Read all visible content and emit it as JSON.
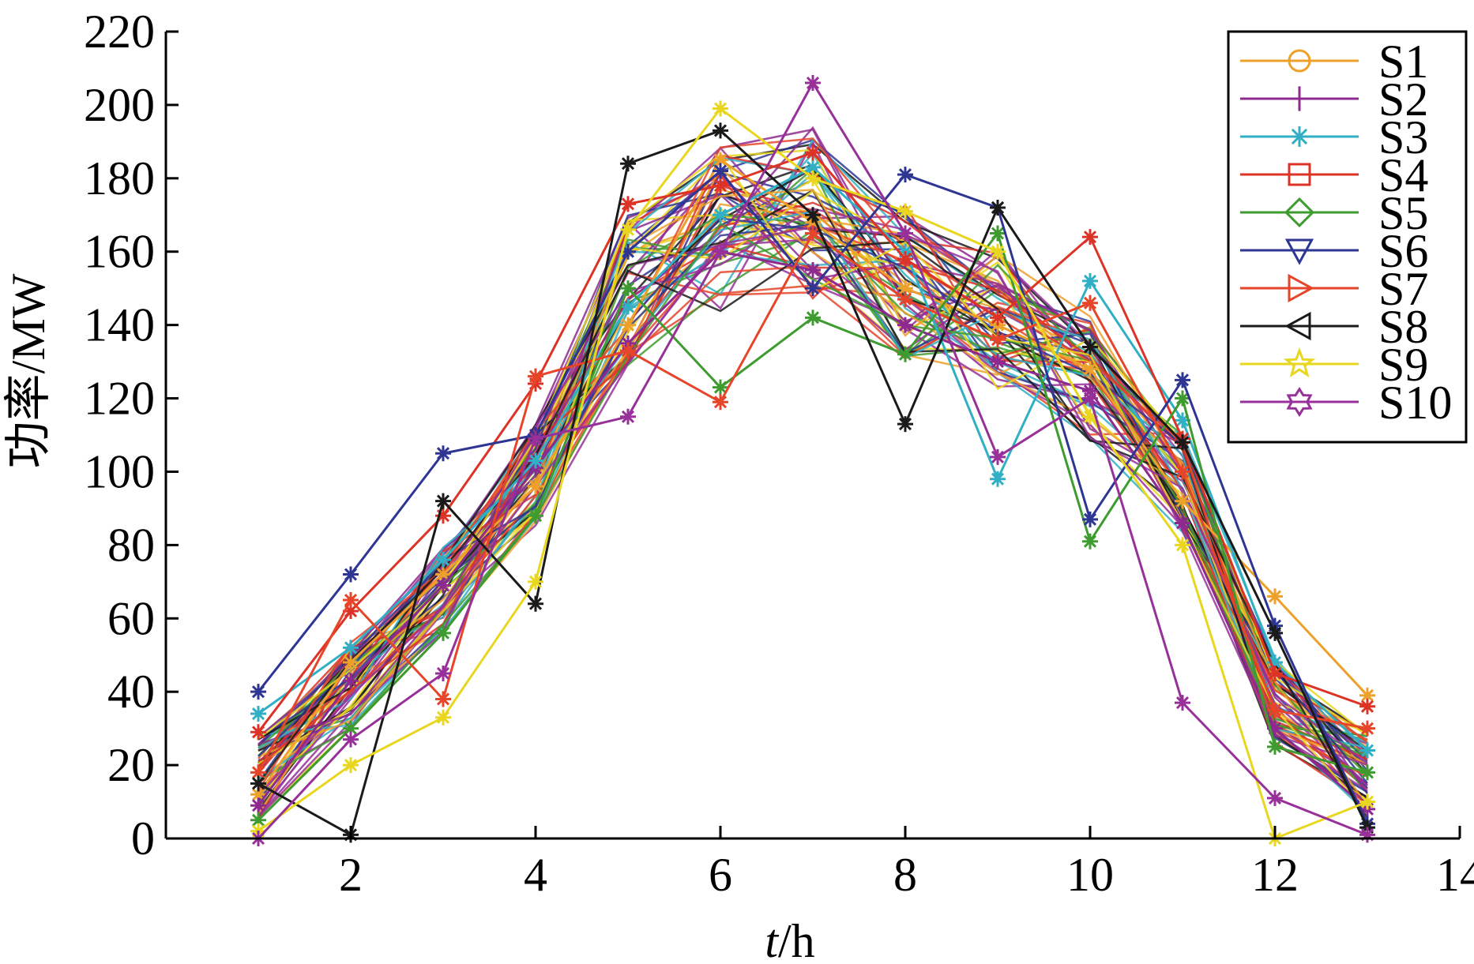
{
  "chart_data": {
    "type": "line",
    "title": "",
    "xlabel_italic": "t",
    "xlabel_rest": "/h",
    "ylabel": "功率/MW",
    "xlim": [
      0,
      14
    ],
    "ylim": [
      0,
      220
    ],
    "xticks": [
      2,
      4,
      6,
      8,
      10,
      12,
      14
    ],
    "yticks": [
      0,
      20,
      40,
      60,
      80,
      100,
      120,
      140,
      160,
      180,
      200,
      220
    ],
    "grid": false,
    "legend_position": "top-right",
    "x": [
      1,
      2,
      3,
      4,
      5,
      6,
      7,
      8,
      9,
      10,
      11,
      12,
      13
    ],
    "series": [
      {
        "name": "S1",
        "color": "#EDA02A",
        "marker": "circle",
        "values": [
          12,
          48,
          72,
          96,
          140,
          185,
          168,
          150,
          140,
          128,
          92,
          66,
          39
        ]
      },
      {
        "name": "S2",
        "color": "#8E2A8F",
        "marker": "plus",
        "values": [
          9,
          43,
          69,
          101,
          135,
          160,
          155,
          140,
          130,
          122,
          86,
          30,
          8
        ]
      },
      {
        "name": "S3",
        "color": "#31AFC4",
        "marker": "asterisk",
        "values": [
          34,
          52,
          76,
          103,
          145,
          170,
          183,
          160,
          98,
          152,
          114,
          48,
          24
        ]
      },
      {
        "name": "S4",
        "color": "#DD3327",
        "marker": "square",
        "values": [
          29,
          62,
          88,
          124,
          173,
          178,
          187,
          158,
          142,
          164,
          109,
          45,
          36
        ]
      },
      {
        "name": "S5",
        "color": "#3E9B2F",
        "marker": "diamond",
        "values": [
          5,
          30,
          56,
          88,
          150,
          123,
          142,
          132,
          165,
          81,
          120,
          25,
          18
        ]
      },
      {
        "name": "S6",
        "color": "#2E3592",
        "marker": "triangle-down",
        "values": [
          40,
          72,
          105,
          110,
          160,
          182,
          150,
          181,
          172,
          87,
          125,
          58,
          4
        ]
      },
      {
        "name": "S7",
        "color": "#E6452A",
        "marker": "triangle-right",
        "values": [
          18,
          65,
          38,
          126,
          133,
          119,
          165,
          147,
          136,
          146,
          100,
          35,
          30
        ]
      },
      {
        "name": "S8",
        "color": "#1A1A1A",
        "marker": "triangle-left",
        "values": [
          15,
          1,
          92,
          64,
          184,
          193,
          170,
          113,
          172,
          134,
          108,
          56,
          3
        ]
      },
      {
        "name": "S9",
        "color": "#E9D61E",
        "marker": "star",
        "values": [
          2,
          20,
          33,
          70,
          166,
          199,
          180,
          171,
          160,
          115,
          80,
          0,
          10
        ]
      },
      {
        "name": "S10",
        "color": "#98309A",
        "marker": "hexagram",
        "values": [
          0,
          27,
          45,
          109,
          115,
          160,
          206,
          165,
          104,
          120,
          37,
          11,
          1
        ]
      }
    ]
  }
}
